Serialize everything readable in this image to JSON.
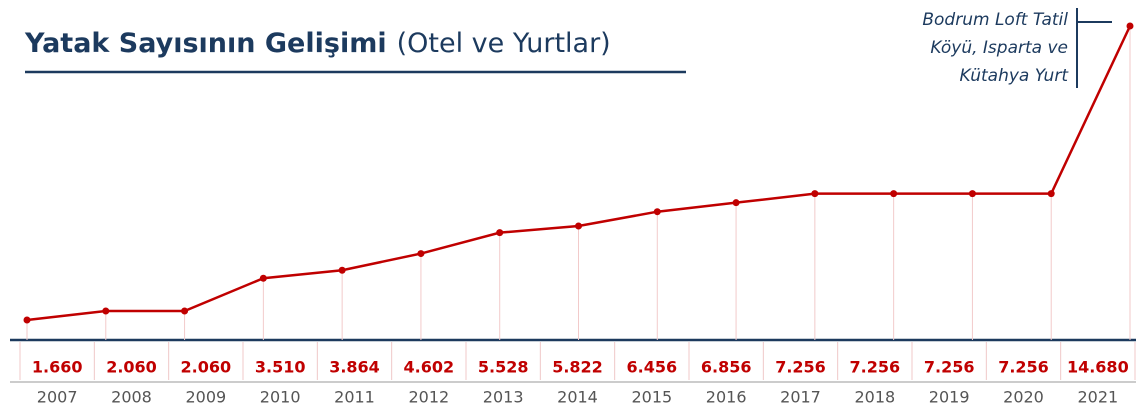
{
  "chart_data": {
    "type": "line",
    "title": "Yatak Sayısının Gelişimi",
    "subtitle": "(Otel ve Yurtlar)",
    "annotation": [
      "Bodrum Loft Tatil",
      "Köyü, Isparta ve",
      "Kütahya Yurt"
    ],
    "categories": [
      "2007",
      "2008",
      "2009",
      "2010",
      "2011",
      "2012",
      "2013",
      "2014",
      "2015",
      "2016",
      "2017",
      "2018",
      "2019",
      "2020",
      "2021"
    ],
    "series": [
      {
        "name": "Yatak Sayısı",
        "color": "#c00000",
        "values": [
          1660,
          2060,
          2060,
          3510,
          3864,
          4602,
          5528,
          5822,
          6456,
          6856,
          7256,
          7256,
          7256,
          7256,
          14680
        ],
        "value_labels": [
          "1.660",
          "2.060",
          "2.060",
          "3.510",
          "3.864",
          "4.602",
          "5.528",
          "5.822",
          "6.456",
          "6.856",
          "7.256",
          "7.256",
          "7.256",
          "7.256",
          "14.680"
        ]
      }
    ]
  }
}
